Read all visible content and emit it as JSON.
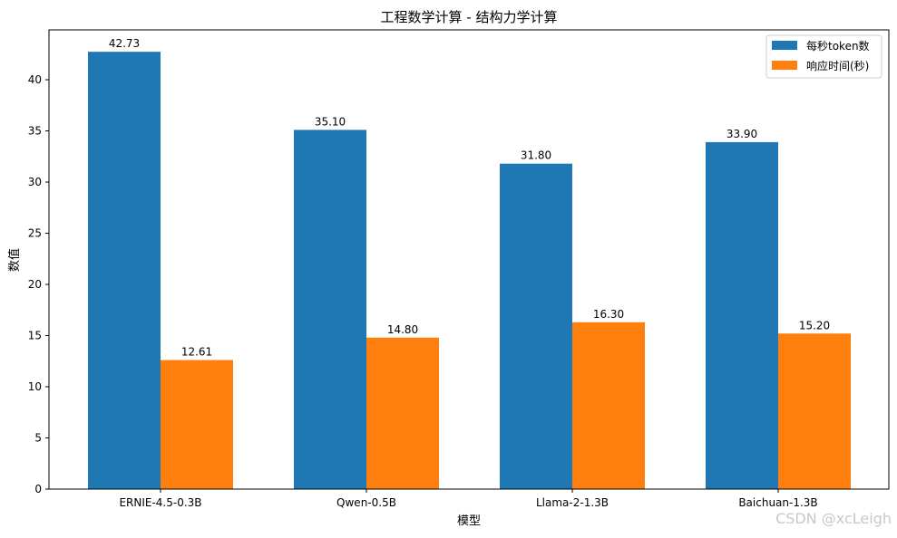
{
  "chart_data": {
    "type": "bar",
    "title": "工程数学计算 - 结构力学计算",
    "xlabel": "模型",
    "ylabel": "数值",
    "categories": [
      "ERNIE-4.5-0.3B",
      "Qwen-0.5B",
      "Llama-2-1.3B",
      "Baichuan-1.3B"
    ],
    "series": [
      {
        "name": "每秒token数",
        "color": "#1f77b4",
        "values": [
          42.73,
          35.1,
          31.8,
          33.9
        ],
        "labels": [
          "42.73",
          "35.10",
          "31.80",
          "33.90"
        ]
      },
      {
        "name": "响应时间(秒)",
        "color": "#ff7f0e",
        "values": [
          12.61,
          14.8,
          16.3,
          15.2
        ],
        "labels": [
          "12.61",
          "14.80",
          "16.30",
          "15.20"
        ]
      }
    ],
    "ylim": [
      0,
      44.87
    ],
    "yticks": [
      0,
      5,
      10,
      15,
      20,
      25,
      30,
      35,
      40
    ],
    "grid": false,
    "legend": "top-right"
  },
  "watermark": "CSDN @xcLeigh"
}
